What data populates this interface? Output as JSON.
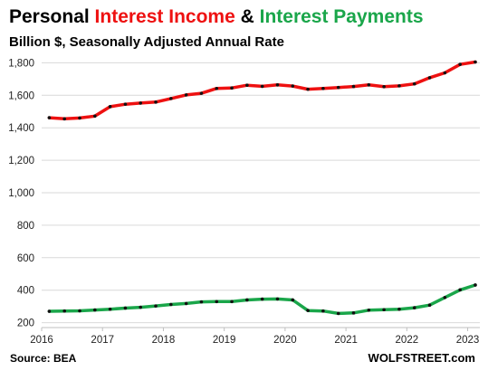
{
  "chart_data": {
    "type": "line",
    "title_parts": [
      {
        "text": "Personal ",
        "color": "#000000"
      },
      {
        "text": "Interest Income",
        "color": "#ee1111"
      },
      {
        "text": " & ",
        "color": "#000000"
      },
      {
        "text": "Interest Payments",
        "color": "#1aa64a"
      }
    ],
    "subtitle": "Billion $, Seasonally Adjusted Annual Rate",
    "source": "Source: BEA",
    "watermark": "WOLFSTREET.com",
    "y_ticks": [
      "200",
      "400",
      "600",
      "800",
      "1,000",
      "1,200",
      "1,400",
      "1,600",
      "1,800"
    ],
    "y_tick_values": [
      200,
      400,
      600,
      800,
      1000,
      1200,
      1400,
      1600,
      1800
    ],
    "x_ticks": [
      "2016",
      "2017",
      "2018",
      "2019",
      "2020",
      "2021",
      "2022",
      "2023"
    ],
    "x_tick_values": [
      2016,
      2017,
      2018,
      2019,
      2020,
      2021,
      2022,
      2023
    ],
    "ylim": [
      170,
      1830
    ],
    "xlim": [
      2016,
      2023.2
    ],
    "grid": true,
    "x": [
      2016.125,
      2016.375,
      2016.625,
      2016.875,
      2017.125,
      2017.375,
      2017.625,
      2017.875,
      2018.125,
      2018.375,
      2018.625,
      2018.875,
      2019.125,
      2019.375,
      2019.625,
      2019.875,
      2020.125,
      2020.375,
      2020.625,
      2020.875,
      2021.125,
      2021.375,
      2021.625,
      2021.875,
      2022.125,
      2022.375,
      2022.625,
      2022.875,
      2023.125
    ],
    "series": [
      {
        "name": "Interest Income",
        "color": "#ee1111",
        "values": [
          1462,
          1455,
          1460,
          1472,
          1530,
          1545,
          1552,
          1558,
          1580,
          1602,
          1612,
          1642,
          1645,
          1662,
          1655,
          1664,
          1657,
          1637,
          1642,
          1648,
          1654,
          1664,
          1653,
          1658,
          1670,
          1708,
          1738,
          1790,
          1805
        ]
      },
      {
        "name": "Interest Payments",
        "color": "#1aa64a",
        "values": [
          270,
          272,
          273,
          278,
          283,
          290,
          295,
          303,
          312,
          318,
          328,
          330,
          330,
          340,
          345,
          346,
          340,
          275,
          272,
          257,
          260,
          277,
          280,
          283,
          292,
          308,
          355,
          402,
          432
        ]
      }
    ]
  }
}
